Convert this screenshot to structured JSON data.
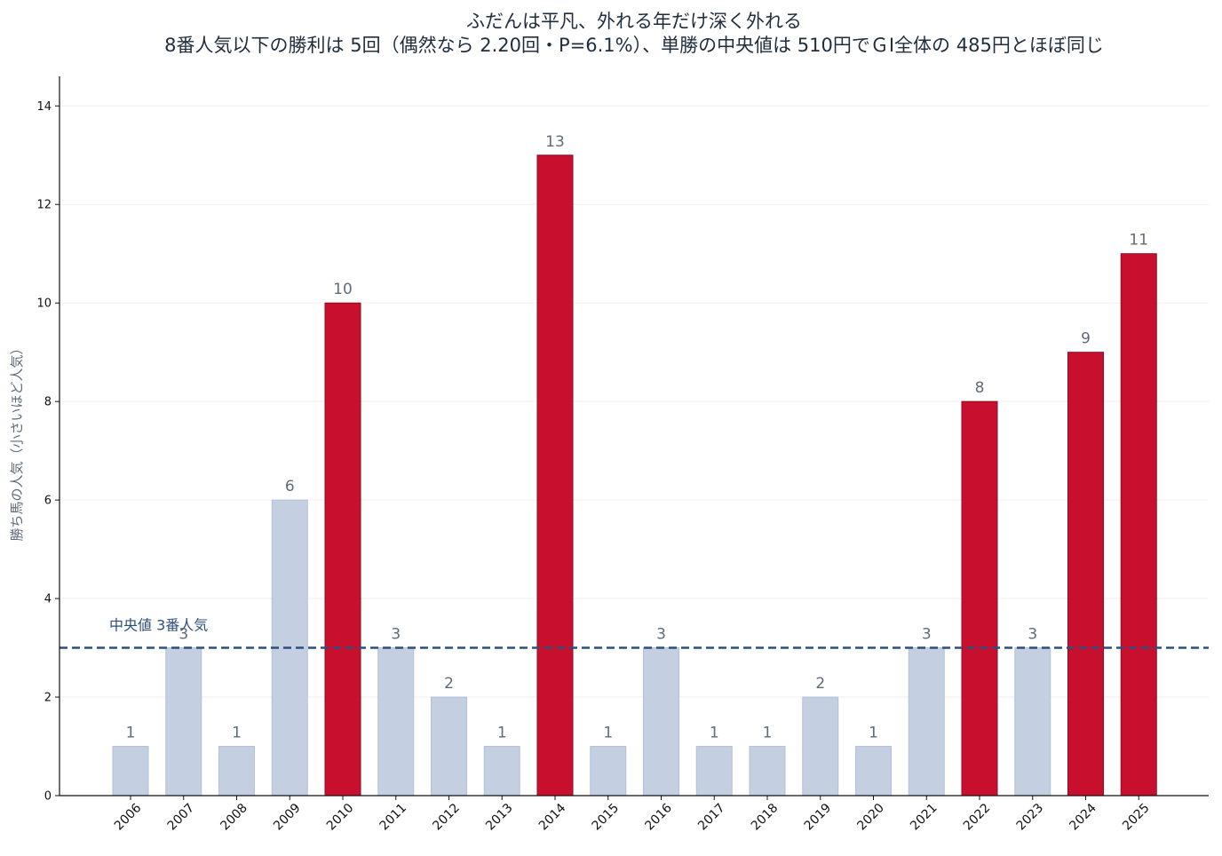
{
  "chart_data": {
    "type": "bar",
    "title": "ふだんは平凡、外れる年だけ深く外れる",
    "subtitle": "8番人気以下の勝利は 5回（偶然なら 2.20回・P=6.1%）、単勝の中央値は 510円でＧⅠ全体の 485円とほぼ同じ",
    "xlabel": "",
    "ylabel": "勝ち馬の人気（小さいほど人気）",
    "categories": [
      "2006",
      "2007",
      "2008",
      "2009",
      "2010",
      "2011",
      "2012",
      "2013",
      "2014",
      "2015",
      "2016",
      "2017",
      "2018",
      "2019",
      "2020",
      "2021",
      "2022",
      "2023",
      "2024",
      "2025"
    ],
    "values": [
      1,
      3,
      1,
      6,
      10,
      3,
      2,
      1,
      13,
      1,
      3,
      1,
      1,
      2,
      1,
      3,
      8,
      3,
      9,
      11
    ],
    "highlighted": [
      false,
      false,
      false,
      false,
      true,
      false,
      false,
      false,
      true,
      false,
      false,
      false,
      false,
      false,
      false,
      false,
      true,
      false,
      true,
      true
    ],
    "ylim": [
      0,
      14.6
    ],
    "yticks": [
      0,
      2,
      4,
      6,
      8,
      10,
      12,
      14
    ],
    "median": {
      "value": 3,
      "label": "中央値 3番人気"
    },
    "grid": "horizontal",
    "colors": {
      "normal_bar": "#c4d0e1",
      "normal_edge": "#b2c1d7",
      "highlight_bar": "#c8102e",
      "highlight_edge": "#8e0b20",
      "median_line": "#2d4f7f",
      "normal_label": "#5f6b7a",
      "highlight_label": "#5f6b7a",
      "axis": "#111111",
      "grid": "#efefef"
    }
  }
}
